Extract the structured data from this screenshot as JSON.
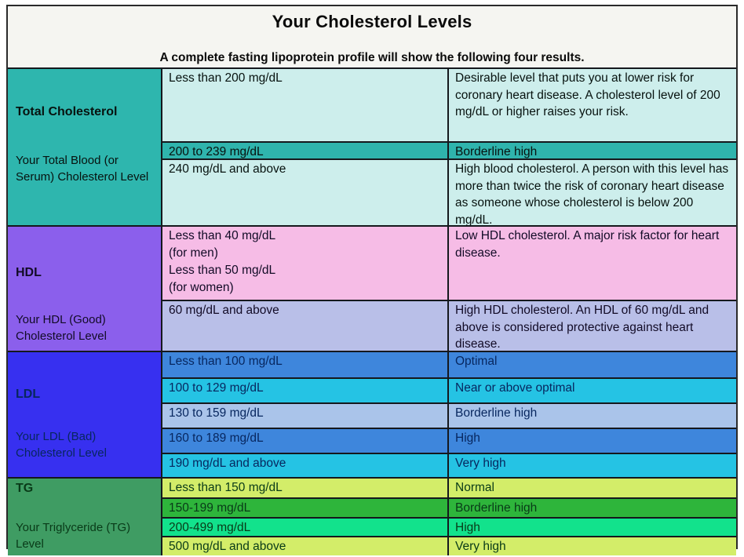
{
  "chart_data": {
    "type": "table",
    "title": "Your Cholesterol Levels",
    "subtitle": "A complete fasting lipoprotein profile will show the following four results.",
    "legend_position": "none",
    "grid": "on",
    "sections": [
      {
        "label": "Total Cholesterol",
        "sublabel": "Your Total Blood (or Serum) Cholesterol Level",
        "left_bg": "#2eb6ae",
        "text_color": "#07120f",
        "rows": [
          {
            "range": "Less than 200 mg/dL",
            "classification": "Desirable level that puts you at lower risk for coronary heart disease. A cholesterol level of 200 mg/dL or higher raises your risk.",
            "bg": "#cdeeec"
          },
          {
            "range": "200 to 239 mg/dL",
            "classification": "Borderline high",
            "bg": "#2fb4ad"
          },
          {
            "range": "240 mg/dL and above",
            "classification": "High blood cholesterol. A person with this level has more than twice the risk of coronary heart disease as someone whose cholesterol is below 200 mg/dL.",
            "bg": "#cdeeec"
          }
        ]
      },
      {
        "label": "HDL",
        "sublabel": "Your HDL (Good) Cholesterol Level",
        "left_bg": "#8b5fec",
        "text_color": "#120b26",
        "rows": [
          {
            "range": "Less than 40 mg/dL\n(for men)\nLess than 50 mg/dL\n(for women)",
            "classification": "Low HDL cholesterol. A major risk factor for heart disease.",
            "bg": "#f6bce6"
          },
          {
            "range": "60 mg/dL and above",
            "classification": "High HDL cholesterol. An HDL of 60 mg/dL and above is considered protective against heart disease.",
            "bg": "#b9bfe8"
          }
        ]
      },
      {
        "label": "LDL",
        "sublabel": "Your LDL (Bad) Cholesterol Level",
        "left_bg": "#3730f0",
        "text_color": "#07265e",
        "rows": [
          {
            "range": "Less than 100 mg/dL",
            "classification": "Optimal",
            "bg": "#3e86dc"
          },
          {
            "range": "100 to 129 mg/dL",
            "classification": "Near or above optimal",
            "bg": "#25c3e4"
          },
          {
            "range": "130 to 159 mg/dL",
            "classification": "Borderline high",
            "bg": "#aac4ea"
          },
          {
            "range": "160 to 189 mg/dL",
            "classification": "High",
            "bg": "#3e86dc"
          },
          {
            "range": "190 mg/dL and above",
            "classification": "Very high",
            "bg": "#25c3e4"
          }
        ]
      },
      {
        "label": "TG",
        "sublabel": "Your Triglyceride (TG) Level",
        "left_bg": "#3f9c63",
        "text_color": "#093a18",
        "rows": [
          {
            "range": "Less than 150 mg/dL",
            "classification": "Normal",
            "bg": "#d3ed69"
          },
          {
            "range": "150-199 mg/dL",
            "classification": "Borderline high",
            "bg": "#2eb53b"
          },
          {
            "range": "200-499 mg/dL",
            "classification": "High",
            "bg": "#12e28c"
          },
          {
            "range": "500 mg/dL and above",
            "classification": "Very high",
            "bg": "#d3ed69"
          }
        ]
      }
    ]
  }
}
